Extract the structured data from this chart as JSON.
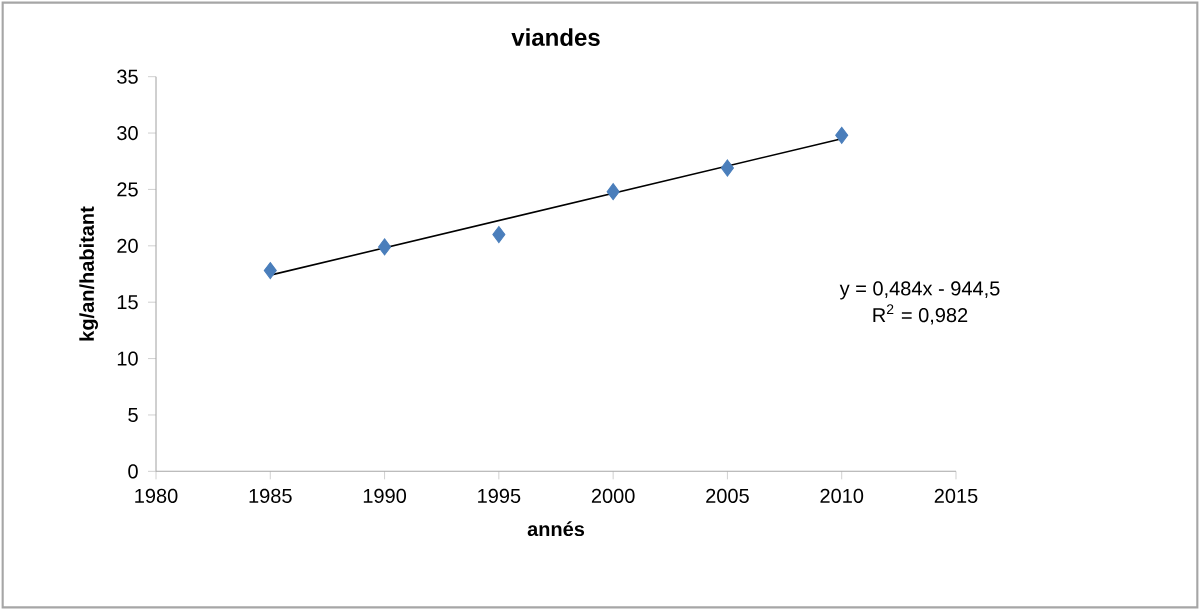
{
  "chart_data": {
    "type": "scatter",
    "title": "viandes",
    "xlabel": "annés",
    "ylabel": "kg/an/habitant",
    "x": [
      1985,
      1990,
      1995,
      2000,
      2005,
      2010
    ],
    "series": [
      {
        "color": "#4a7ebb",
        "marker": "diamond",
        "values": [
          17.8,
          19.9,
          21,
          24.8,
          26.9,
          29.8
        ]
      },
      {
        "type": "line",
        "color": "#000000",
        "marker": "none",
        "x": [
          1985,
          2010
        ],
        "values": [
          17.4,
          29.5
        ]
      }
    ],
    "annotations": [
      "y = 0,484x - 944,5",
      "R$^{2}$ = 0,982"
    ],
    "xlim": [
      1980,
      2015
    ],
    "xticks": [
      1980,
      1985,
      1990,
      1995,
      2000,
      2005,
      2010,
      2015
    ],
    "ylim": [
      0,
      35
    ],
    "yticks": [
      0,
      5,
      10,
      15,
      20,
      25,
      30,
      35
    ],
    "grid": false
  }
}
